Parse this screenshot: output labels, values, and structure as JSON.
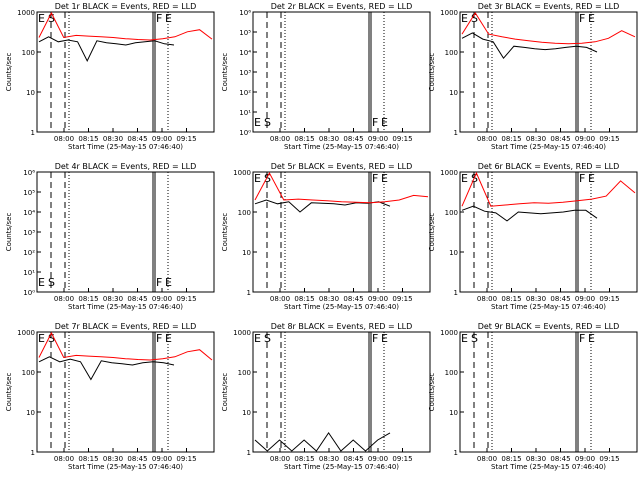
{
  "figure": {
    "xlabel": "Start Time (25-May-15 07:46:40)",
    "ylabel": "Counts/sec",
    "x_ticks": [
      "08:00",
      "08:15",
      "08:30",
      "08:45",
      "09:00",
      "09:15"
    ],
    "x_range": [
      "07:46:40",
      "09:26:40"
    ],
    "colors": {
      "events": "#000000",
      "lld": "#ff0000"
    }
  },
  "chart_data": [
    {
      "type": "line",
      "title": "Det 1r BLACK = Events, RED = LLD",
      "scale": "log",
      "ylim": [
        1,
        1000
      ],
      "y_tick_labels": [
        "1",
        "10",
        "100",
        "1000"
      ],
      "markers": [
        "E",
        "S",
        "F",
        "E"
      ],
      "series": [
        {
          "values": [
            [
              0,
              180
            ],
            [
              1,
              240
            ],
            [
              2,
              180
            ],
            [
              3,
              200
            ],
            [
              4,
              180
            ],
            [
              5,
              60
            ],
            [
              6,
              190
            ],
            [
              7,
              170
            ],
            [
              8,
              160
            ],
            [
              9,
              150
            ],
            [
              10,
              170
            ],
            [
              11,
              180
            ],
            [
              12,
              190
            ],
            [
              13,
              160
            ],
            [
              14,
              150
            ]
          ]
        },
        {
          "values": [
            [
              0,
              230
            ],
            [
              1,
              1000
            ],
            [
              2,
              230
            ],
            [
              3,
              260
            ],
            [
              4,
              250
            ],
            [
              5,
              240
            ],
            [
              6,
              230
            ],
            [
              7,
              215
            ],
            [
              8,
              205
            ],
            [
              9,
              200
            ],
            [
              10,
              215
            ],
            [
              11,
              240
            ],
            [
              12,
              320
            ],
            [
              13,
              360
            ],
            [
              14,
              210
            ]
          ]
        }
      ]
    },
    {
      "type": "line",
      "title": "Det 2r BLACK = Events, RED = LLD",
      "scale": "log",
      "ylim": [
        1,
        1000000
      ],
      "y_tick_labels": [
        "10⁰",
        "10¹",
        "10²",
        "10³",
        "10⁴",
        "10⁵",
        "10⁶"
      ],
      "markers": [
        "E",
        "S",
        "F",
        "E"
      ],
      "series": []
    },
    {
      "type": "line",
      "title": "Det 3r BLACK = Events, RED = LLD",
      "scale": "log",
      "ylim": [
        1,
        1000
      ],
      "y_tick_labels": [
        "1",
        "10",
        "100",
        "1000"
      ],
      "markers": [
        "E",
        "S",
        "F",
        "E"
      ],
      "series": [
        {
          "values": [
            [
              0,
              220
            ],
            [
              1,
              300
            ],
            [
              2,
              210
            ],
            [
              3,
              180
            ],
            [
              4,
              70
            ],
            [
              5,
              140
            ],
            [
              6,
              130
            ],
            [
              7,
              120
            ],
            [
              8,
              115
            ],
            [
              9,
              120
            ],
            [
              10,
              130
            ],
            [
              11,
              140
            ],
            [
              12,
              130
            ],
            [
              13,
              100
            ]
          ]
        },
        {
          "values": [
            [
              0,
              280
            ],
            [
              1,
              1000
            ],
            [
              2,
              280
            ],
            [
              3,
              240
            ],
            [
              4,
              210
            ],
            [
              5,
              190
            ],
            [
              6,
              175
            ],
            [
              7,
              165
            ],
            [
              8,
              160
            ],
            [
              9,
              165
            ],
            [
              10,
              180
            ],
            [
              11,
              220
            ],
            [
              12,
              340
            ],
            [
              13,
              240
            ]
          ]
        }
      ]
    },
    {
      "type": "line",
      "title": "Det 4r BLACK = Events, RED = LLD",
      "scale": "log",
      "ylim": [
        1,
        1000000
      ],
      "y_tick_labels": [
        "10⁰",
        "10¹",
        "10²",
        "10³",
        "10⁴",
        "10⁵",
        "10⁶"
      ],
      "markers": [
        "E",
        "S",
        "F",
        "E"
      ],
      "series": []
    },
    {
      "type": "line",
      "title": "Det 5r BLACK = Events, RED = LLD",
      "scale": "log",
      "ylim": [
        1,
        1000
      ],
      "y_tick_labels": [
        "1",
        "10",
        "100",
        "1000"
      ],
      "markers": [
        "E",
        "S",
        "F",
        "E"
      ],
      "series": [
        {
          "values": [
            [
              0,
              160
            ],
            [
              1,
              200
            ],
            [
              2,
              160
            ],
            [
              3,
              180
            ],
            [
              4,
              100
            ],
            [
              5,
              170
            ],
            [
              6,
              165
            ],
            [
              7,
              160
            ],
            [
              8,
              150
            ],
            [
              9,
              170
            ],
            [
              10,
              165
            ],
            [
              11,
              180
            ],
            [
              12,
              140
            ]
          ]
        },
        {
          "values": [
            [
              0,
              200
            ],
            [
              1,
              1300
            ],
            [
              2,
              200
            ],
            [
              3,
              210
            ],
            [
              4,
              200
            ],
            [
              5,
              190
            ],
            [
              6,
              180
            ],
            [
              7,
              175
            ],
            [
              8,
              170
            ],
            [
              9,
              180
            ],
            [
              10,
              200
            ],
            [
              11,
              260
            ],
            [
              12,
              240
            ]
          ]
        }
      ]
    },
    {
      "type": "line",
      "title": "Det 6r BLACK = Events, RED = LLD",
      "scale": "log",
      "ylim": [
        1,
        1000
      ],
      "y_tick_labels": [
        "1",
        "10",
        "100",
        "1000"
      ],
      "markers": [
        "E",
        "S",
        "F",
        "E"
      ],
      "series": [
        {
          "values": [
            [
              0,
              110
            ],
            [
              1,
              140
            ],
            [
              2,
              105
            ],
            [
              3,
              95
            ],
            [
              4,
              60
            ],
            [
              5,
              100
            ],
            [
              6,
              95
            ],
            [
              7,
              90
            ],
            [
              8,
              95
            ],
            [
              9,
              100
            ],
            [
              10,
              110
            ],
            [
              11,
              110
            ],
            [
              12,
              70
            ]
          ]
        },
        {
          "values": [
            [
              0,
              140
            ],
            [
              1,
              1100
            ],
            [
              2,
              140
            ],
            [
              3,
              150
            ],
            [
              4,
              160
            ],
            [
              5,
              170
            ],
            [
              6,
              165
            ],
            [
              7,
              175
            ],
            [
              8,
              190
            ],
            [
              9,
              210
            ],
            [
              10,
              250
            ],
            [
              11,
              600
            ],
            [
              12,
              300
            ]
          ]
        }
      ]
    },
    {
      "type": "line",
      "title": "Det 7r BLACK = Events, RED = LLD",
      "scale": "log",
      "ylim": [
        1,
        1000
      ],
      "y_tick_labels": [
        "1",
        "10",
        "100",
        "1000"
      ],
      "markers": [
        "E",
        "S",
        "F",
        "E"
      ],
      "series": [
        {
          "values": [
            [
              0,
              180
            ],
            [
              1,
              240
            ],
            [
              2,
              180
            ],
            [
              3,
              210
            ],
            [
              4,
              180
            ],
            [
              5,
              65
            ],
            [
              6,
              190
            ],
            [
              7,
              170
            ],
            [
              8,
              160
            ],
            [
              9,
              150
            ],
            [
              10,
              170
            ],
            [
              11,
              180
            ],
            [
              12,
              170
            ],
            [
              13,
              150
            ]
          ]
        },
        {
          "values": [
            [
              0,
              230
            ],
            [
              1,
              1000
            ],
            [
              2,
              230
            ],
            [
              3,
              260
            ],
            [
              4,
              250
            ],
            [
              5,
              240
            ],
            [
              6,
              230
            ],
            [
              7,
              215
            ],
            [
              8,
              205
            ],
            [
              9,
              200
            ],
            [
              10,
              215
            ],
            [
              11,
              240
            ],
            [
              12,
              320
            ],
            [
              13,
              360
            ],
            [
              14,
              200
            ]
          ]
        }
      ]
    },
    {
      "type": "line",
      "title": "Det 8r BLACK = Events, RED = LLD",
      "scale": "log",
      "ylim": [
        1,
        1000
      ],
      "y_tick_labels": [
        "1",
        "10",
        "100",
        "1000"
      ],
      "markers": [
        "E",
        "S",
        "F",
        "E"
      ],
      "series": [
        {
          "values": [
            [
              0,
              2
            ],
            [
              1,
              1
            ],
            [
              2,
              2
            ],
            [
              3,
              1
            ],
            [
              4,
              2
            ],
            [
              5,
              1
            ],
            [
              6,
              3
            ],
            [
              7,
              1
            ],
            [
              8,
              2
            ],
            [
              9,
              1
            ],
            [
              10,
              2
            ],
            [
              11,
              3
            ]
          ]
        }
      ]
    },
    {
      "type": "line",
      "title": "Det 9r BLACK = Events, RED = LLD",
      "scale": "log",
      "ylim": [
        1,
        1000
      ],
      "y_tick_labels": [
        "1",
        "10",
        "100",
        "1000"
      ],
      "markers": [
        "E",
        "S",
        "F",
        "E"
      ],
      "series": []
    }
  ]
}
